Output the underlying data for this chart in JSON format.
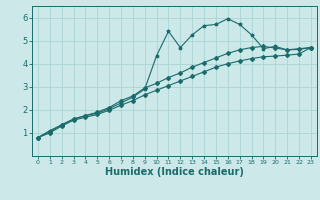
{
  "background_color": "#cce8e8",
  "grid_color": "#aad4d4",
  "line_color": "#1a6b6b",
  "xlabel": "Humidex (Indice chaleur)",
  "xlabel_fontsize": 7,
  "xlim": [
    -0.5,
    23.5
  ],
  "ylim": [
    0,
    6.5
  ],
  "xticks": [
    0,
    1,
    2,
    3,
    4,
    5,
    6,
    7,
    8,
    9,
    10,
    11,
    12,
    13,
    14,
    15,
    16,
    17,
    18,
    19,
    20,
    21,
    22,
    23
  ],
  "yticks": [
    1,
    2,
    3,
    4,
    5,
    6
  ],
  "series1_x": [
    0,
    1,
    2,
    3,
    4,
    5,
    6,
    7,
    8,
    9,
    10,
    11,
    12,
    13,
    14,
    15,
    16,
    17,
    18,
    19,
    20,
    21,
    22,
    23
  ],
  "series1_y": [
    0.8,
    1.1,
    1.35,
    1.6,
    1.75,
    1.85,
    2.05,
    2.3,
    2.55,
    2.9,
    4.35,
    5.4,
    4.7,
    5.25,
    5.65,
    5.7,
    5.95,
    5.7,
    5.25,
    4.65,
    4.75,
    4.6,
    4.65,
    4.7
  ],
  "series2_x": [
    0,
    1,
    2,
    3,
    4,
    5,
    6,
    7,
    8,
    9,
    10,
    11,
    12,
    13,
    14,
    15,
    16,
    17,
    18,
    19,
    20,
    21,
    22,
    23
  ],
  "series2_y": [
    0.8,
    1.05,
    1.35,
    1.6,
    1.75,
    1.9,
    2.1,
    2.4,
    2.6,
    2.95,
    3.15,
    3.4,
    3.6,
    3.85,
    4.05,
    4.25,
    4.45,
    4.6,
    4.7,
    4.75,
    4.68,
    4.6,
    4.62,
    4.7
  ],
  "series3_x": [
    0,
    1,
    2,
    3,
    4,
    5,
    6,
    7,
    8,
    9,
    10,
    11,
    12,
    13,
    14,
    15,
    16,
    17,
    18,
    19,
    20,
    21,
    22,
    23
  ],
  "series3_y": [
    0.8,
    1.0,
    1.3,
    1.55,
    1.68,
    1.8,
    1.98,
    2.2,
    2.4,
    2.65,
    2.85,
    3.05,
    3.25,
    3.45,
    3.65,
    3.85,
    4.0,
    4.12,
    4.22,
    4.3,
    4.33,
    4.37,
    4.42,
    4.7
  ]
}
